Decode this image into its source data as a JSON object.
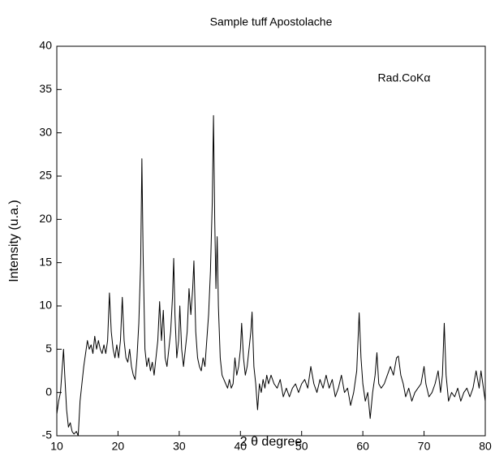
{
  "chart_data": {
    "type": "line",
    "title": "Sample tuff Apostolache",
    "annotation": "Rad.CoKα",
    "x_label": "2 θ degree",
    "y_label": "Intensity (u.a.)",
    "xlim": [
      10,
      80
    ],
    "ylim": [
      -5,
      40
    ],
    "xticks": [
      10,
      20,
      30,
      40,
      50,
      60,
      70,
      80
    ],
    "yticks": [
      -5,
      0,
      5,
      10,
      15,
      20,
      25,
      30,
      35,
      40
    ],
    "color": "#000000",
    "x": [
      10.0,
      10.3,
      10.6,
      10.9,
      11.1,
      11.3,
      11.6,
      11.9,
      12.2,
      12.5,
      12.8,
      13.2,
      13.5,
      13.8,
      14.1,
      14.4,
      14.7,
      15.0,
      15.3,
      15.6,
      15.9,
      16.2,
      16.5,
      16.8,
      17.1,
      17.4,
      17.7,
      18.0,
      18.3,
      18.6,
      18.9,
      19.2,
      19.5,
      19.8,
      20.1,
      20.4,
      20.7,
      21.0,
      21.3,
      21.6,
      21.9,
      22.2,
      22.5,
      22.8,
      23.1,
      23.4,
      23.7,
      23.9,
      24.1,
      24.4,
      24.7,
      25.0,
      25.3,
      25.6,
      25.9,
      26.2,
      26.5,
      26.8,
      27.1,
      27.4,
      27.7,
      28.0,
      28.3,
      28.6,
      28.9,
      29.1,
      29.3,
      29.6,
      29.9,
      30.1,
      30.4,
      30.7,
      31.0,
      31.3,
      31.6,
      31.9,
      32.2,
      32.4,
      32.7,
      33.0,
      33.3,
      33.6,
      33.9,
      34.2,
      34.5,
      34.8,
      35.1,
      35.4,
      35.6,
      35.8,
      36.0,
      36.2,
      36.4,
      36.7,
      37.0,
      37.3,
      37.6,
      37.9,
      38.2,
      38.5,
      38.8,
      39.1,
      39.4,
      39.7,
      40.0,
      40.2,
      40.5,
      40.8,
      41.1,
      41.4,
      41.7,
      41.9,
      42.2,
      42.5,
      42.8,
      43.1,
      43.4,
      43.7,
      44.0,
      44.3,
      44.6,
      45.0,
      45.5,
      46.0,
      46.5,
      47.0,
      47.5,
      48.0,
      48.5,
      49.0,
      49.5,
      50.0,
      50.5,
      51.0,
      51.5,
      52.0,
      52.5,
      53.0,
      53.5,
      54.0,
      54.5,
      55.0,
      55.5,
      56.0,
      56.5,
      57.0,
      57.5,
      58.0,
      58.5,
      59.0,
      59.4,
      59.7,
      60.0,
      60.4,
      60.8,
      61.2,
      61.6,
      62.0,
      62.3,
      62.6,
      63.0,
      63.5,
      64.0,
      64.5,
      65.0,
      65.5,
      65.8,
      66.2,
      66.6,
      67.0,
      67.5,
      68.0,
      68.5,
      69.0,
      69.5,
      70.0,
      70.3,
      70.8,
      71.3,
      71.8,
      72.3,
      72.7,
      73.0,
      73.3,
      73.6,
      74.0,
      74.5,
      75.0,
      75.5,
      76.0,
      76.5,
      77.0,
      77.5,
      78.0,
      78.5,
      79.0,
      79.3,
      79.6,
      80.0
    ],
    "values": [
      -2.5,
      -1,
      0,
      3,
      5,
      2,
      -2,
      -4,
      -3.5,
      -4.5,
      -4.8,
      -4.5,
      -5,
      -1,
      1,
      3,
      4.5,
      6,
      5,
      5.5,
      4.5,
      6.5,
      5,
      6,
      5,
      4.5,
      5.5,
      4.5,
      6,
      11.5,
      7,
      5,
      4,
      5.5,
      4,
      6,
      11,
      6,
      4,
      3.5,
      5,
      3,
      2,
      1.5,
      4,
      8,
      15,
      27,
      16,
      5,
      3,
      4,
      2.5,
      3.5,
      2,
      4,
      6,
      10.5,
      6,
      9.5,
      4,
      3,
      5,
      7,
      11,
      15.5,
      9,
      4,
      6,
      10,
      5,
      3,
      5,
      7,
      12,
      9,
      12,
      15.2,
      7,
      4,
      3,
      2.5,
      4,
      3,
      6,
      9,
      14,
      22,
      32,
      20,
      12,
      18,
      10,
      4,
      2,
      1.5,
      1,
      0.5,
      1.5,
      0.5,
      1,
      4,
      2,
      3,
      5,
      8,
      4,
      2,
      3,
      5,
      7,
      9.3,
      3,
      1,
      -2,
      1,
      0,
      1.5,
      0.5,
      2,
      1,
      2,
      1,
      0.5,
      1.5,
      -0.5,
      0.5,
      -0.5,
      0.5,
      1,
      0,
      1,
      1.5,
      0.5,
      3,
      1,
      0,
      1.5,
      0.5,
      2,
      0.5,
      1.5,
      -0.5,
      0.5,
      2,
      0,
      0.5,
      -1.5,
      0,
      2.5,
      9.2,
      4,
      1,
      -1,
      0,
      -3,
      0,
      2,
      4.6,
      1,
      0.5,
      1,
      2,
      3,
      2,
      4,
      4.2,
      2,
      1,
      -0.5,
      0.5,
      -1,
      0,
      0.5,
      1,
      3,
      1,
      -0.5,
      0,
      1,
      2.5,
      0,
      2,
      8,
      2,
      -1,
      0,
      -0.5,
      0.5,
      -1,
      0,
      0.5,
      -0.5,
      0.5,
      2.5,
      0.5,
      2.5,
      1,
      -1
    ]
  }
}
